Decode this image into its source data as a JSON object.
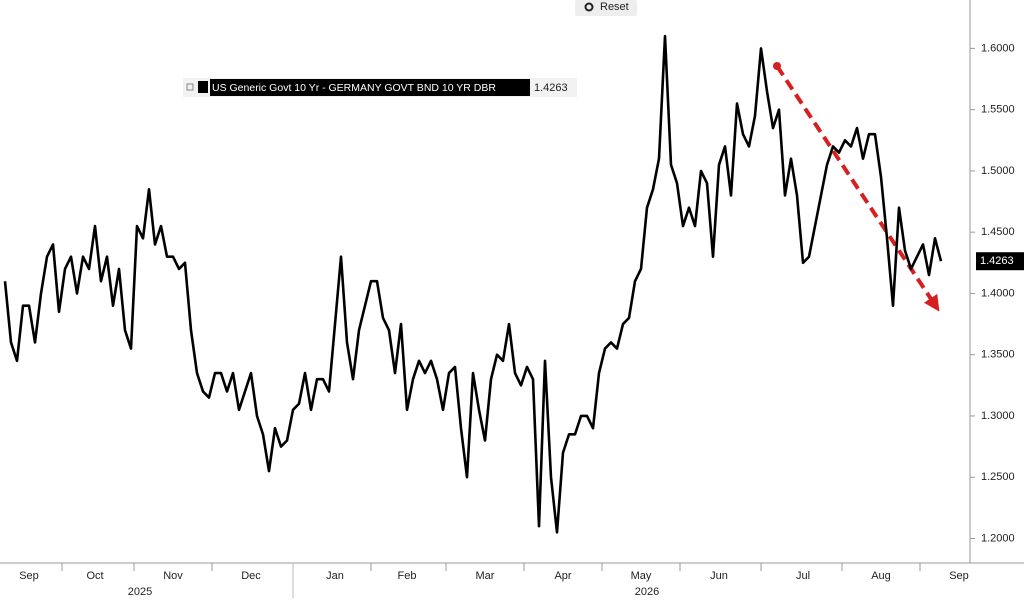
{
  "controls": {
    "reset": "Reset"
  },
  "chart_data": {
    "type": "line",
    "categories": [
      null,
      null,
      null,
      null,
      "Sep",
      null,
      null,
      null,
      null,
      null,
      null,
      null,
      null,
      null,
      null,
      "Oct",
      null,
      null,
      null,
      null,
      null,
      null,
      null,
      null,
      null,
      null,
      null,
      null,
      "Nov",
      null,
      null,
      null,
      null,
      null,
      null,
      null,
      null,
      null,
      null,
      null,
      null,
      "Dec",
      null,
      null,
      null,
      null,
      null,
      null,
      null,
      null,
      null,
      null,
      null,
      null,
      null,
      "Jan",
      null,
      null,
      null,
      null,
      null,
      null,
      null,
      null,
      null,
      null,
      null,
      "Feb",
      null,
      null,
      null,
      null,
      null,
      null,
      null,
      null,
      null,
      null,
      null,
      null,
      "Mar",
      null,
      null,
      null,
      null,
      null,
      null,
      null,
      null,
      null,
      null,
      null,
      null,
      "Apr",
      null,
      null,
      null,
      null,
      null,
      null,
      null,
      null,
      null,
      null,
      null,
      null,
      "May",
      null,
      null,
      null,
      null,
      null,
      null,
      null,
      null,
      null,
      null,
      null,
      null,
      "Jun",
      null,
      null,
      null,
      null,
      null,
      null,
      null,
      null,
      null,
      null,
      null,
      null,
      null,
      "Jul",
      null,
      null,
      null,
      null,
      null,
      null,
      null,
      null,
      null,
      null,
      null,
      null,
      "Aug",
      null,
      null,
      null,
      null,
      null,
      null,
      null,
      null,
      null,
      null,
      null,
      null,
      "Sep"
    ],
    "x_years": [
      "2025",
      "2026"
    ],
    "series": [
      {
        "name": "US Generic Govt 10 Yr - GERMANY GOVT BND 10 YR DBR",
        "color": "#000000",
        "values": [
          1.41,
          1.36,
          1.345,
          1.39,
          1.39,
          1.36,
          1.4,
          1.43,
          1.44,
          1.385,
          1.42,
          1.43,
          1.4,
          1.43,
          1.42,
          1.455,
          1.41,
          1.43,
          1.39,
          1.42,
          1.37,
          1.355,
          1.455,
          1.445,
          1.485,
          1.44,
          1.455,
          1.43,
          1.43,
          1.42,
          1.425,
          1.37,
          1.335,
          1.32,
          1.315,
          1.335,
          1.335,
          1.32,
          1.335,
          1.305,
          1.32,
          1.335,
          1.3,
          1.285,
          1.255,
          1.29,
          1.275,
          1.28,
          1.305,
          1.31,
          1.335,
          1.305,
          1.33,
          1.33,
          1.32,
          1.375,
          1.43,
          1.36,
          1.33,
          1.37,
          1.39,
          1.41,
          1.41,
          1.38,
          1.37,
          1.335,
          1.375,
          1.305,
          1.33,
          1.345,
          1.335,
          1.345,
          1.33,
          1.305,
          1.335,
          1.34,
          1.29,
          1.25,
          1.335,
          1.305,
          1.28,
          1.33,
          1.35,
          1.345,
          1.375,
          1.335,
          1.325,
          1.34,
          1.33,
          1.21,
          1.345,
          1.25,
          1.205,
          1.27,
          1.285,
          1.285,
          1.3,
          1.3,
          1.29,
          1.335,
          1.355,
          1.36,
          1.355,
          1.375,
          1.38,
          1.41,
          1.42,
          1.47,
          1.485,
          1.51,
          1.61,
          1.505,
          1.49,
          1.455,
          1.47,
          1.455,
          1.5,
          1.49,
          1.43,
          1.505,
          1.52,
          1.48,
          1.555,
          1.53,
          1.52,
          1.545,
          1.6,
          1.565,
          1.535,
          1.55,
          1.48,
          1.51,
          1.48,
          1.425,
          1.43,
          1.455,
          1.48,
          1.505,
          1.52,
          1.515,
          1.525,
          1.52,
          1.535,
          1.51,
          1.53,
          1.53,
          1.495,
          1.445,
          1.39,
          1.47,
          1.435,
          1.42,
          1.43,
          1.44,
          1.415,
          1.445,
          1.4263,
          null,
          null,
          null
        ]
      }
    ],
    "ylim": [
      1.18,
      1.6395
    ],
    "yticks": [
      {
        "value": 1.2,
        "label": "1.2000"
      },
      {
        "value": 1.25,
        "label": "1.2500"
      },
      {
        "value": 1.3,
        "label": "1.3000"
      },
      {
        "value": 1.35,
        "label": "1.3500"
      },
      {
        "value": 1.4,
        "label": "1.4000"
      },
      {
        "value": 1.45,
        "label": "1.4500"
      },
      {
        "value": 1.5,
        "label": "1.5000"
      },
      {
        "value": 1.55,
        "label": "1.5500"
      },
      {
        "value": 1.6,
        "label": "1.6000"
      }
    ],
    "grid": false
  }
}
